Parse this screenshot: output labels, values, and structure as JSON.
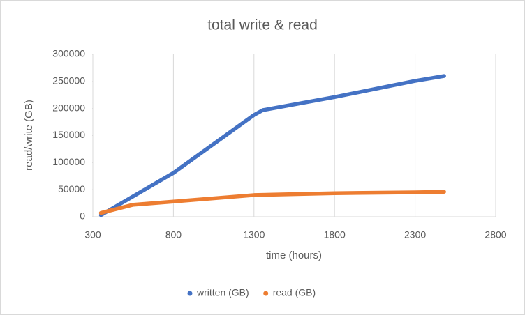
{
  "chart_data": {
    "type": "scatter",
    "title": "total write & read",
    "x_label": "time (hours)",
    "y_label": "read/write (GB)",
    "xlim": [
      300,
      2800
    ],
    "xticks": [
      300,
      800,
      1300,
      1800,
      2300,
      2800
    ],
    "ylim": [
      0,
      300000
    ],
    "yticks": [
      0,
      50000,
      100000,
      150000,
      200000,
      250000,
      300000
    ],
    "grid": "x",
    "legend": "bottom",
    "series": [
      {
        "name": "written (GB)",
        "color": "#4472c4",
        "x": [
          350,
          800,
          1300,
          1355,
          1800,
          2300,
          2480
        ],
        "values": [
          3000,
          81000,
          188000,
          197000,
          221000,
          251000,
          260000
        ]
      },
      {
        "name": "read (GB)",
        "color": "#ed7d31",
        "x": [
          350,
          547,
          800,
          1300,
          1800,
          2300,
          2480
        ],
        "values": [
          7000,
          22000,
          28000,
          40000,
          43500,
          45000,
          46000
        ]
      }
    ]
  }
}
